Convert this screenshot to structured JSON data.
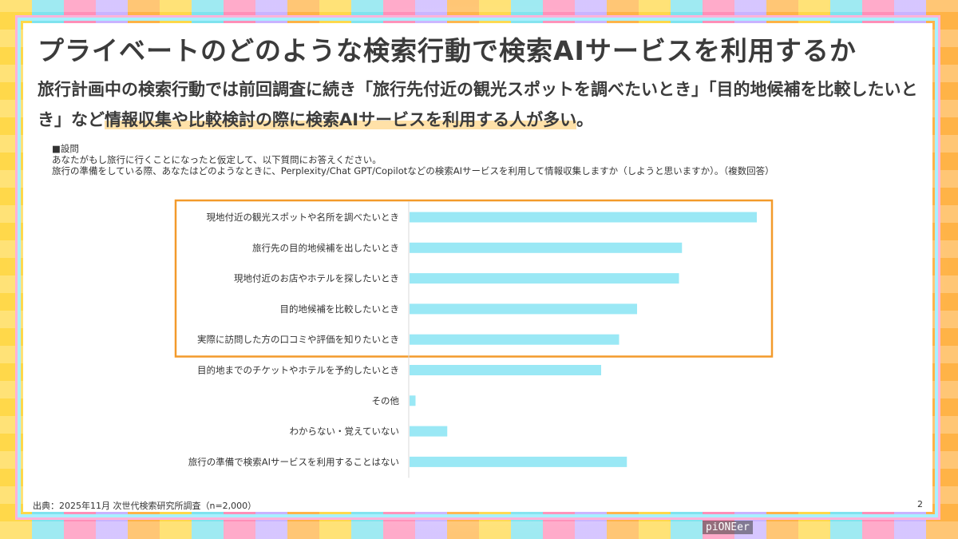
{
  "slide": {
    "title": "プライベートのどのような検索行動で検索AIサービスを利用するか",
    "subtitle_part1": "旅行計画中の検索行動では前回調査に続き「旅行先付近の観光スポットを調べたいとき」「目的地候補を比較したいとき」など",
    "subtitle_highlight": "情報収集や比較検討の際に検索AIサービスを利用する人が多い",
    "subtitle_end": "。",
    "question": {
      "heading": "■設問",
      "line1": "あなたがもし旅行に行くことになったと仮定して、以下質問にお答えください。",
      "line2": "旅行の準備をしている際、あなたはどのようなときに、Perplexity/Chat GPT/Copilotなどの検索AIサービスを利用して情報収集しますか（しようと思いますか）。（複数回答）"
    },
    "footer": "出典：2025年11月 次世代検索研究所調査（n=2,000）",
    "page_number": "2",
    "logo": "piONEer"
  },
  "chart_data": {
    "type": "bar",
    "orientation": "horizontal",
    "categories": [
      "現地付近の観光スポットや名所を調べたいとき",
      "旅行先の目的地候補を出したいとき",
      "現地付近のお店やホテルを探したいとき",
      "目的地候補を比較したいとき",
      "実際に訪問した方の口コミや評価を知りたいとき",
      "目的地までのチケットやホテルを予約したいとき",
      "その他",
      "わからない・覚えていない",
      "旅行の準備で検索AIサービスを利用することはない"
    ],
    "values": [
      58,
      45.5,
      45,
      38,
      35,
      32,
      1,
      6.3,
      36.3
    ],
    "xlim": [
      0,
      60
    ],
    "grid": false,
    "legend": "none",
    "highlight_top_n": 5,
    "colors": {
      "bar": "#9ae8f5",
      "highlight_box": "#f39a2b",
      "axis": "#d9d9d9"
    }
  }
}
